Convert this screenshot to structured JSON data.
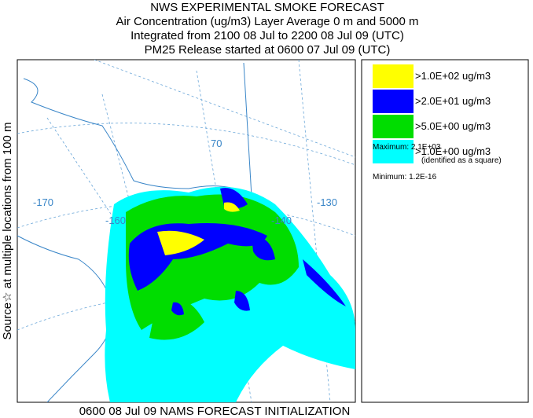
{
  "header": {
    "title": "NWS EXPERIMENTAL SMOKE FORECAST",
    "lines": [
      "Air Concentration (ug/m3) Layer Average    0 m and  5000 m",
      "Integrated from 2100 08 Jul to 2200 08 Jul 09 (UTC)",
      "PM25 Release started at 0600 07 Jul 09 (UTC)"
    ]
  },
  "side_label": "Source☆  at multiple locations  from  100 m",
  "map_labels": [
    "-170",
    "-160",
    "-140",
    "-130",
    "70"
  ],
  "legend": [
    {
      "label": ">1.0E+02 ug/m3",
      "color": "#ffff00"
    },
    {
      "label": ">2.0E+01 ug/m3",
      "color": "#0000ff"
    },
    {
      "label": ">5.0E+00 ug/m3",
      "color": "#00dd00"
    },
    {
      "label": ">1.0E+00 ug/m3",
      "color": "#00ffff"
    }
  ],
  "stats": {
    "maximum": "Maximum: 2.1E+03",
    "maximum_note": "(identified as a square)",
    "minimum": "Minimum: 1.2E-16"
  },
  "footer": "0600 08 Jul 09 NAMS FORECAST INITIALIZATION"
}
